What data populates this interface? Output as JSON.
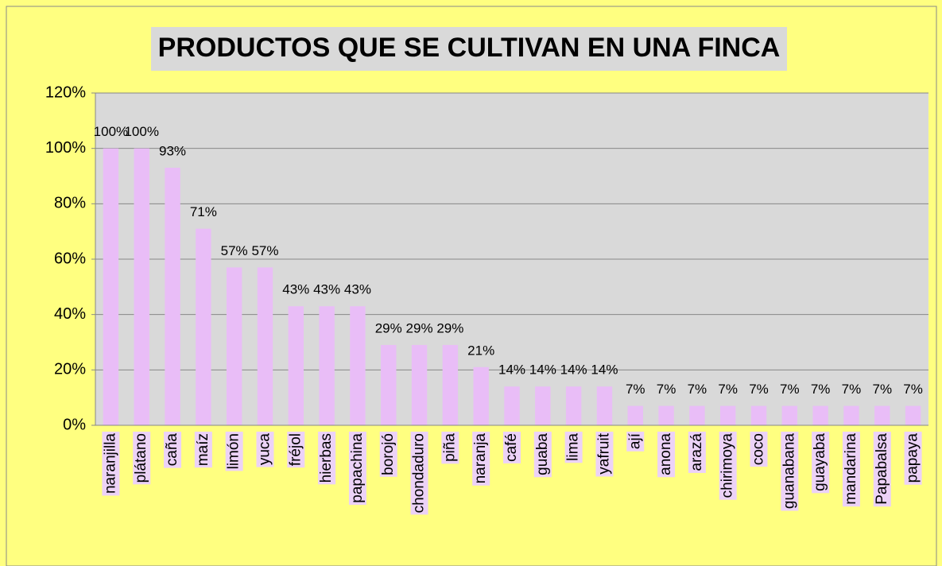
{
  "chart_data": {
    "type": "bar",
    "title": "PRODUCTOS QUE SE CULTIVAN EN UNA FINCA",
    "categories": [
      "naranjilla",
      "plátano",
      "caña",
      "maíz",
      "limón",
      "yuca",
      "fréjol",
      "hierbas",
      "papachina",
      "borojó",
      "chondaduro",
      "piña",
      "naranja",
      "café",
      "guaba",
      "lima",
      "yafruit",
      "ají",
      "anona",
      "arazá",
      "chirimoya",
      "coco",
      "guanabana",
      "guayaba",
      "mandarina",
      "Papabalsa",
      "papaya"
    ],
    "values": [
      100,
      100,
      93,
      71,
      57,
      57,
      43,
      43,
      43,
      29,
      29,
      29,
      21,
      14,
      14,
      14,
      14,
      7,
      7,
      7,
      7,
      7,
      7,
      7,
      7,
      7,
      7
    ],
    "value_labels": [
      "100%",
      "100%",
      "93%",
      "71%",
      "57%",
      "57%",
      "43%",
      "43%",
      "43%",
      "29%",
      "29%",
      "29%",
      "21%",
      "14%",
      "14%",
      "14%",
      "14%",
      "7%",
      "7%",
      "7%",
      "7%",
      "7%",
      "7%",
      "7%",
      "7%",
      "7%",
      "7%"
    ],
    "color": "#e9bdf7",
    "ylim": [
      0,
      120
    ],
    "yticks": [
      {
        "value": 0,
        "label": "0%"
      },
      {
        "value": 20,
        "label": "20%"
      },
      {
        "value": 40,
        "label": "40%"
      },
      {
        "value": 60,
        "label": "60%"
      },
      {
        "value": 80,
        "label": "80%"
      },
      {
        "value": 100,
        "label": "100%"
      },
      {
        "value": 120,
        "label": "120%"
      }
    ],
    "grid": true
  }
}
